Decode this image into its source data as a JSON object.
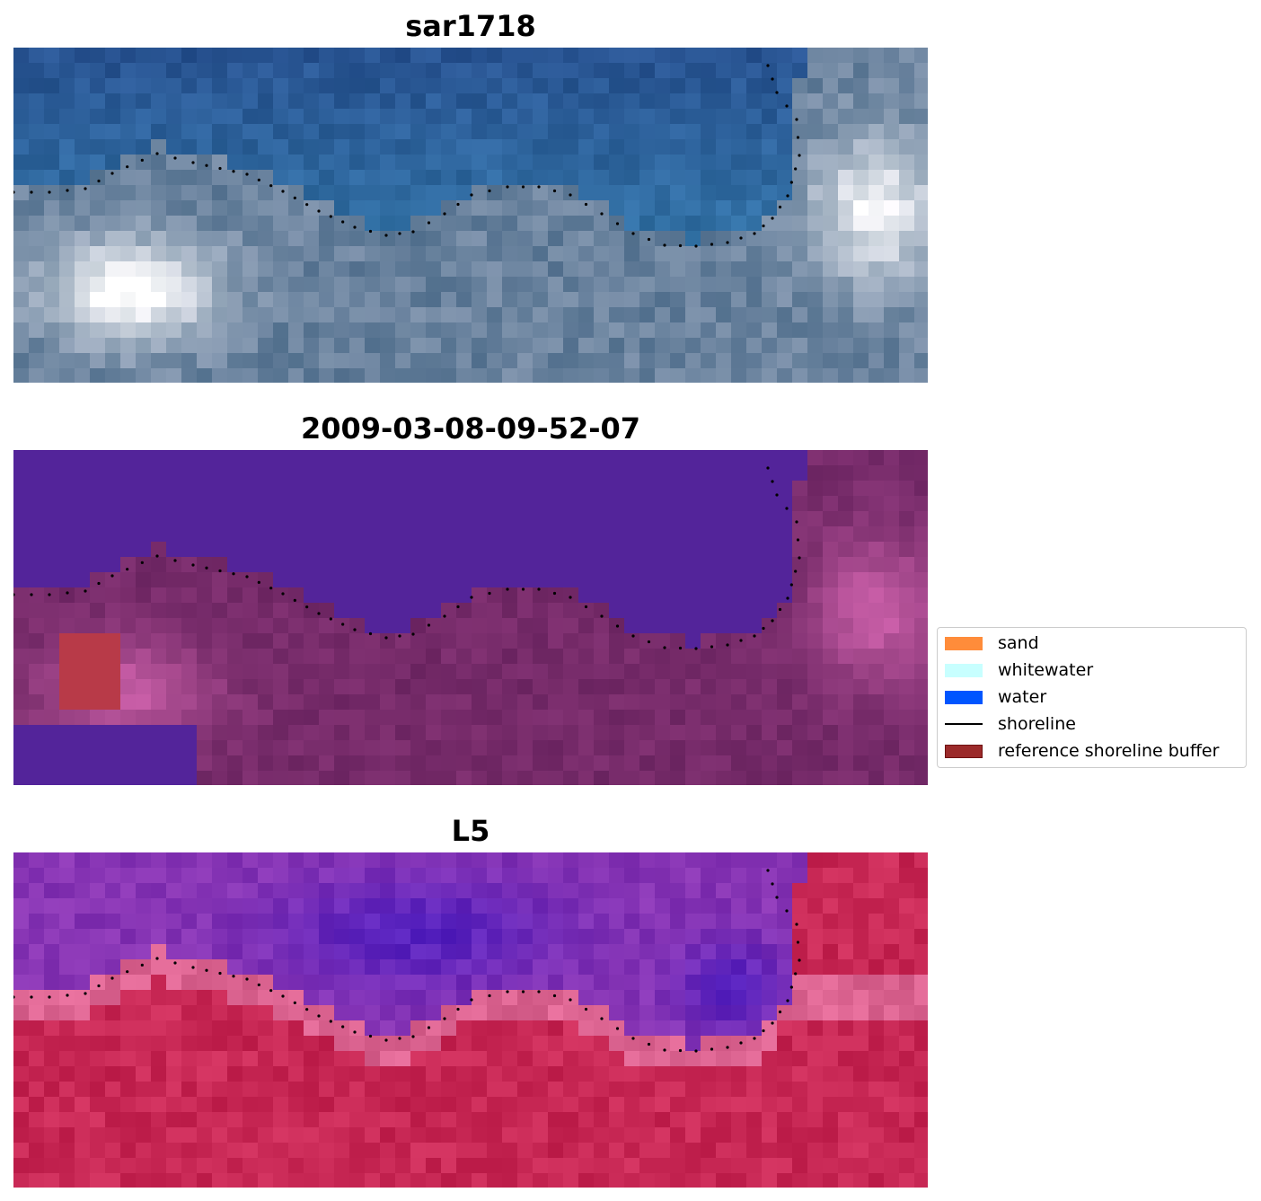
{
  "panels": [
    {
      "title": "sar1718",
      "style": "rgb"
    },
    {
      "title": "2009-03-08-09-52-07",
      "style": "classified"
    },
    {
      "title": "L5",
      "style": "index"
    }
  ],
  "legend": {
    "items": [
      {
        "label": "sand",
        "type": "patch",
        "color": "#ff8c3a"
      },
      {
        "label": "whitewater",
        "type": "patch",
        "color": "#c8ffff"
      },
      {
        "label": "water",
        "type": "patch",
        "color": "#0055ff"
      },
      {
        "label": "shoreline",
        "type": "line",
        "color": "#000000"
      },
      {
        "label": "reference shoreline buffer",
        "type": "patch",
        "color": "#9b2a2a",
        "edge": "#6e1010"
      }
    ]
  },
  "colors": {
    "classified_water": "#53249a",
    "classified_sand": "#b83a48",
    "dots": "#000000"
  }
}
